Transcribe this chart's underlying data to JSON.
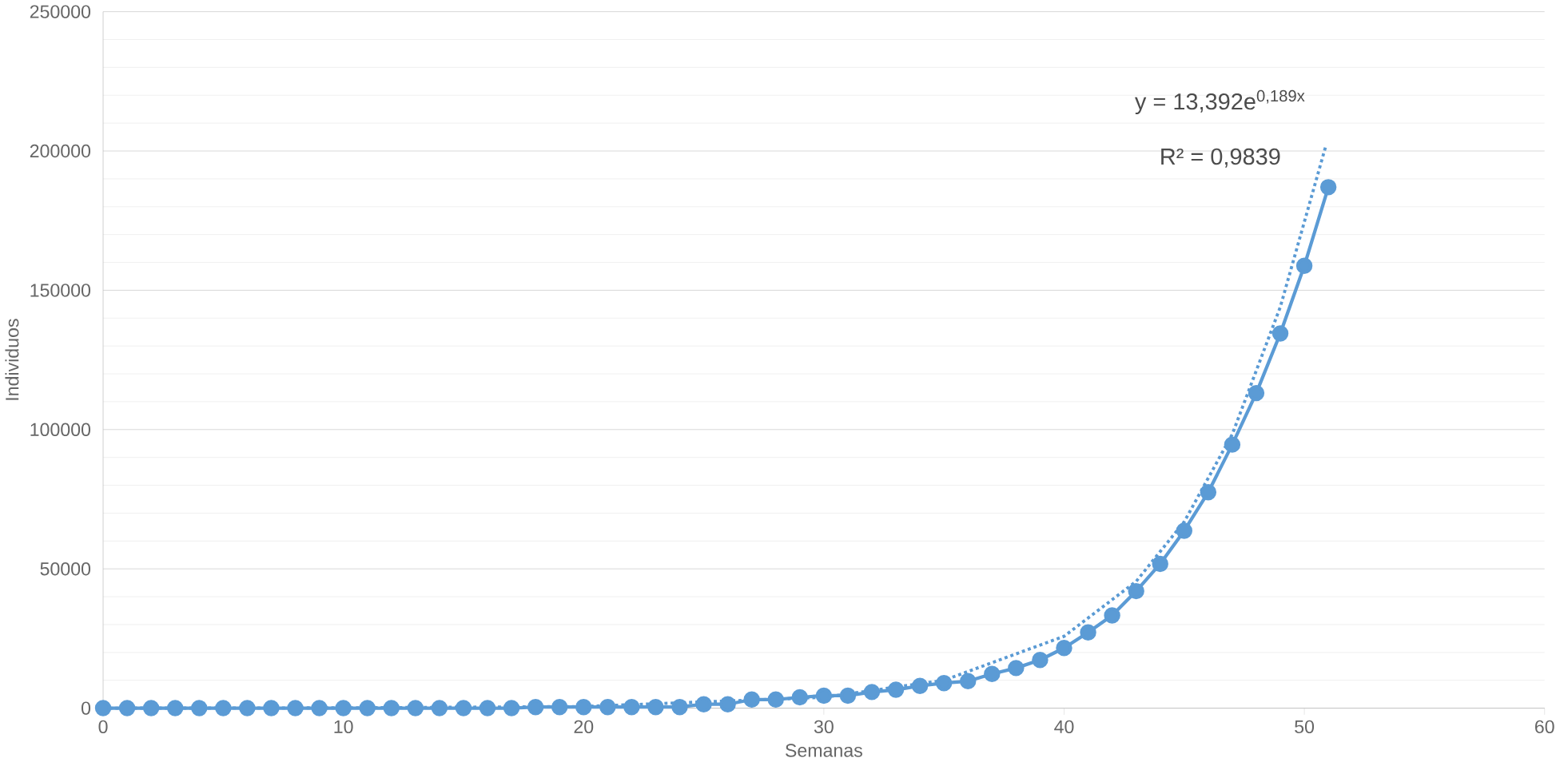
{
  "chart_data": {
    "type": "line",
    "xlabel": "Semanas",
    "ylabel": "Individuos",
    "xlim": [
      0,
      60
    ],
    "xticks": [
      0,
      10,
      20,
      30,
      40,
      50,
      60
    ],
    "ylim": [
      0,
      250000
    ],
    "yticks": [
      0,
      50000,
      100000,
      150000,
      200000,
      250000
    ],
    "grid": "y",
    "annotations": [
      "y = 13,392e$^{0,189x}$",
      "R² = 0,9839"
    ],
    "series": [
      {
        "color": "#5b9bd5",
        "marker": "circle",
        "line_style": "solid",
        "x": [
          0,
          1,
          2,
          3,
          4,
          5,
          6,
          7,
          8,
          9,
          10,
          11,
          12,
          13,
          14,
          15,
          16,
          17,
          18,
          19,
          20,
          21,
          22,
          23,
          24,
          25,
          26,
          27,
          28,
          29,
          30,
          31,
          32,
          33,
          34,
          35,
          36,
          37,
          38,
          39,
          40,
          41,
          42,
          43,
          44,
          45,
          46,
          47,
          48,
          49,
          50,
          51
        ],
        "values": [
          0,
          0,
          0,
          0,
          0,
          0,
          0,
          0,
          0,
          0,
          0,
          0,
          0,
          0,
          0,
          0,
          0,
          0,
          400,
          400,
          400,
          400,
          400,
          400,
          400,
          1400,
          1400,
          3100,
          3100,
          3900,
          4500,
          4500,
          5800,
          6600,
          8000,
          9000,
          9700,
          12300,
          14400,
          17300,
          21600,
          27200,
          33300,
          42000,
          51800,
          63700,
          77500,
          94600,
          113100,
          134500,
          158800,
          187000
        ]
      },
      {
        "color": "#5a9ad4",
        "marker": "none",
        "line_style": "dotted",
        "x": [
          0,
          10,
          20,
          30,
          35,
          40,
          43,
          45,
          47,
          49,
          50.9
        ],
        "values": [
          0,
          100,
          600,
          3900,
          10000,
          25800,
          45500,
          66900,
          98300,
          144000,
          202000
        ]
      }
    ]
  }
}
